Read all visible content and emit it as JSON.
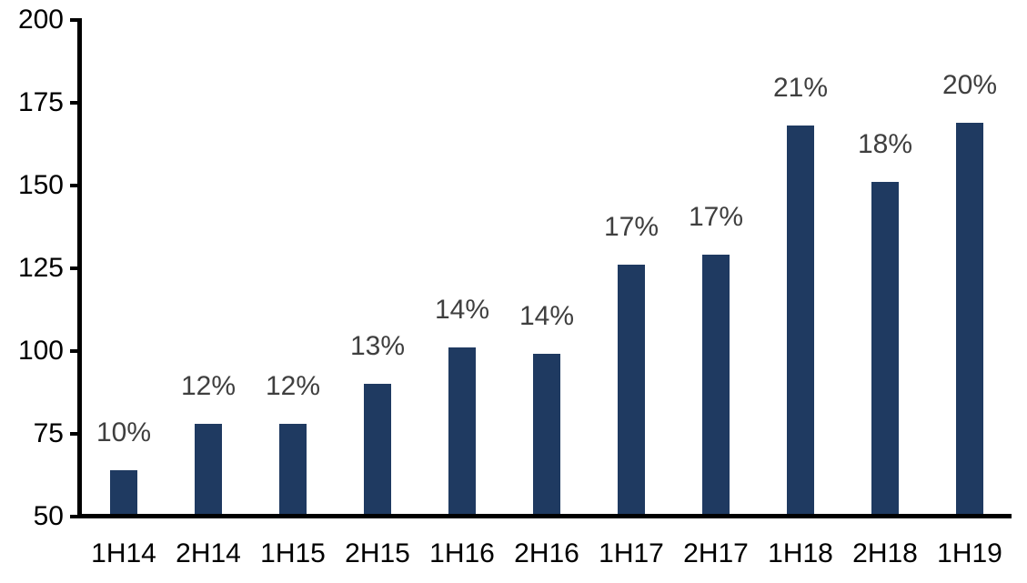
{
  "chart_data": {
    "type": "bar",
    "title": "",
    "xlabel": "",
    "ylabel": "",
    "categories": [
      "1H14",
      "2H14",
      "1H15",
      "2H15",
      "1H16",
      "2H16",
      "1H17",
      "2H17",
      "1H18",
      "2H18",
      "1H19"
    ],
    "values": [
      64,
      78,
      78,
      90,
      101,
      99,
      126,
      129,
      168,
      151,
      169
    ],
    "bar_labels": [
      "10%",
      "12%",
      "12%",
      "13%",
      "14%",
      "14%",
      "17%",
      "17%",
      "21%",
      "18%",
      "20%"
    ],
    "ylim": [
      50,
      200
    ],
    "yticks": [
      50,
      75,
      100,
      125,
      150,
      175,
      200
    ],
    "grid": false,
    "legend": false,
    "colors": {
      "bar": "#1F3A61",
      "data_label": "#3F3F3F",
      "axis": "#000000",
      "tick_label": "#000000",
      "background": "#FFFFFF"
    }
  }
}
